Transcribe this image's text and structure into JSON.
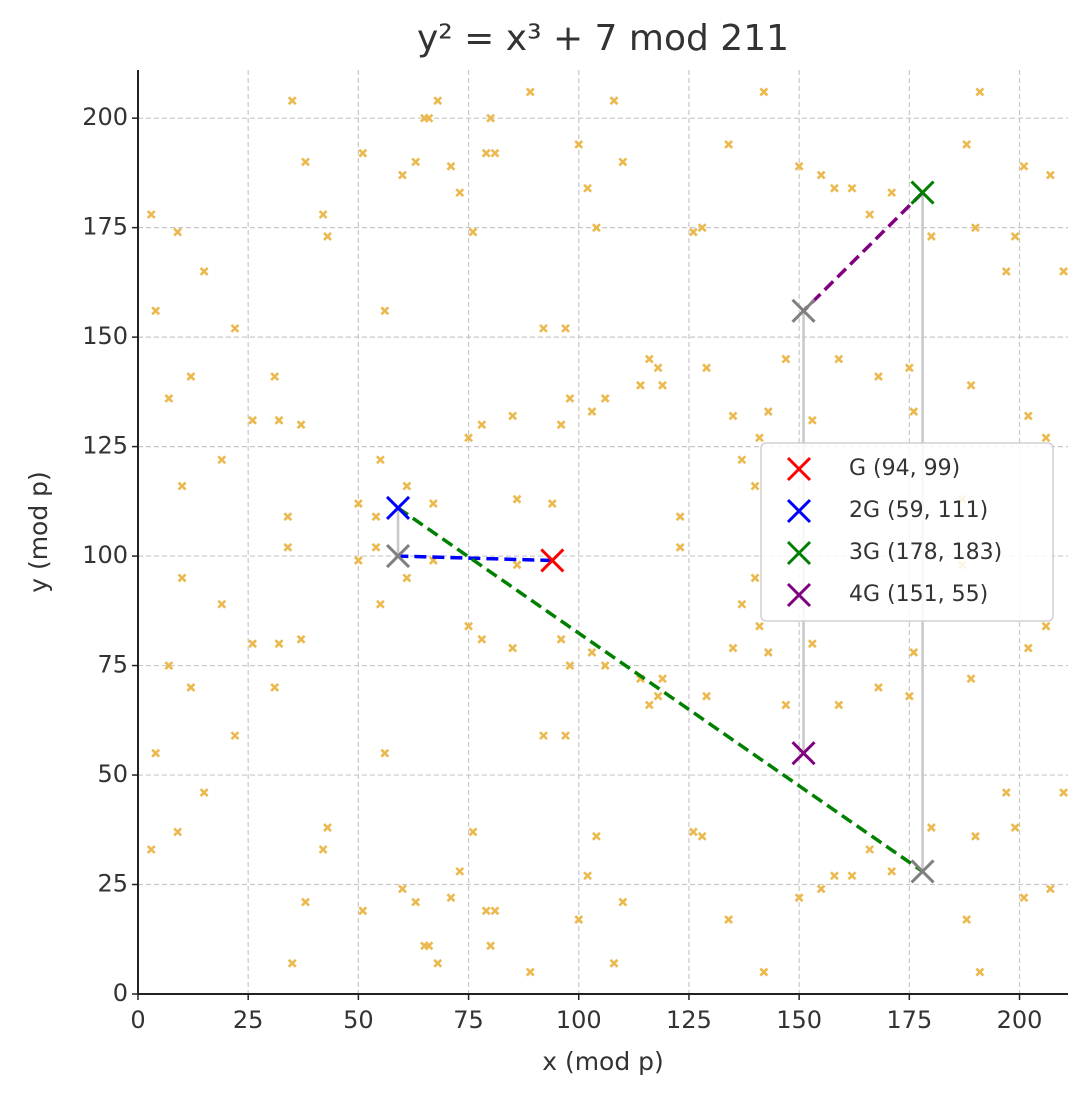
{
  "chart_data": {
    "type": "scatter",
    "title": "y² = x³ + 7 mod 211",
    "x_label": "x (mod p)",
    "y_label": "y (mod p)",
    "xlim": [
      0,
      211
    ],
    "ylim": [
      0,
      211
    ],
    "xticks": [
      0,
      25,
      50,
      75,
      100,
      125,
      150,
      175,
      200
    ],
    "yticks": [
      0,
      25,
      50,
      75,
      100,
      125,
      150,
      175,
      200
    ],
    "grid": true,
    "legend": "center right",
    "series": [
      {
        "color": "#ebb94e",
        "marker": "small",
        "x": [
          3,
          3,
          4,
          4,
          7,
          7,
          9,
          9,
          10,
          10,
          12,
          12,
          15,
          15,
          19,
          19,
          22,
          22,
          26,
          26,
          31,
          31,
          32,
          32,
          34,
          34,
          35,
          35,
          37,
          37,
          38,
          38,
          42,
          42,
          43,
          43,
          50,
          50,
          51,
          51,
          54,
          54,
          55,
          55,
          56,
          56,
          59,
          59,
          60,
          60,
          61,
          61,
          63,
          63,
          65,
          65,
          66,
          66,
          67,
          67,
          68,
          68,
          71,
          71,
          73,
          73,
          75,
          75,
          76,
          76,
          78,
          78,
          79,
          79,
          80,
          80,
          81,
          81,
          85,
          85,
          86,
          86,
          89,
          89,
          92,
          92,
          94,
          94,
          96,
          96,
          97,
          97,
          98,
          98,
          100,
          100,
          102,
          102,
          103,
          103,
          104,
          104,
          106,
          106,
          108,
          108,
          110,
          110,
          114,
          114,
          116,
          116,
          118,
          118,
          119,
          119,
          123,
          123,
          126,
          126,
          128,
          128,
          129,
          129,
          134,
          134,
          135,
          135,
          137,
          137,
          140,
          140,
          141,
          141,
          142,
          142,
          143,
          143,
          147,
          147,
          150,
          150,
          151,
          151,
          153,
          153,
          155,
          155,
          158,
          158,
          159,
          159,
          162,
          162,
          166,
          166,
          168,
          168,
          171,
          171,
          175,
          175,
          176,
          176,
          178,
          178,
          180,
          180,
          187,
          187,
          188,
          188,
          189,
          189,
          190,
          190,
          191,
          191,
          197,
          197,
          199,
          199,
          201,
          201,
          202,
          202,
          206,
          206,
          207,
          207,
          210,
          210
        ],
        "values": [
          178,
          33,
          156,
          55,
          136,
          75,
          174,
          37,
          116,
          95,
          141,
          70,
          165,
          46,
          122,
          89,
          152,
          59,
          131,
          80,
          141,
          70,
          131,
          80,
          109,
          102,
          204,
          7,
          130,
          81,
          190,
          21,
          178,
          33,
          173,
          38,
          112,
          99,
          192,
          19,
          109,
          102,
          122,
          89,
          156,
          55,
          111,
          100,
          187,
          24,
          116,
          95,
          190,
          21,
          200,
          11,
          200,
          11,
          112,
          99,
          204,
          7,
          189,
          22,
          183,
          28,
          127,
          84,
          174,
          37,
          130,
          81,
          192,
          19,
          200,
          11,
          192,
          19,
          132,
          79,
          113,
          98,
          206,
          5,
          152,
          59,
          112,
          99,
          130,
          81,
          152,
          59,
          136,
          75,
          194,
          17,
          184,
          27,
          133,
          78,
          175,
          36,
          136,
          75,
          204,
          7,
          190,
          21,
          139,
          72,
          145,
          66,
          143,
          68,
          139,
          72,
          109,
          102,
          174,
          37,
          175,
          36,
          143,
          68,
          194,
          17,
          132,
          79,
          122,
          89,
          116,
          95,
          127,
          84,
          206,
          5,
          133,
          78,
          145,
          66,
          189,
          22,
          156,
          55,
          131,
          80,
          187,
          24,
          184,
          27,
          145,
          66,
          184,
          27,
          178,
          33,
          141,
          70,
          183,
          28,
          143,
          68,
          133,
          78,
          183,
          28,
          173,
          38,
          113,
          98,
          194,
          17,
          139,
          72,
          175,
          36,
          206,
          5,
          165,
          46,
          173,
          38,
          189,
          22,
          132,
          79,
          127,
          84,
          187,
          24,
          165,
          46
        ]
      },
      {
        "color": "#808080",
        "marker": "large",
        "x": [
          59,
          178,
          151
        ],
        "values": [
          100,
          28,
          156
        ]
      },
      {
        "name": "G (94, 99)",
        "color": "#ff0000",
        "marker": "large",
        "x": [
          94
        ],
        "values": [
          99
        ]
      },
      {
        "name": "2G (59, 111)",
        "color": "#0000ff",
        "marker": "large",
        "x": [
          59
        ],
        "values": [
          111
        ]
      },
      {
        "name": "3G (178, 183)",
        "color": "#008000",
        "marker": "large",
        "x": [
          178
        ],
        "values": [
          183
        ]
      },
      {
        "name": "4G (151, 55)",
        "color": "#800080",
        "marker": "large",
        "x": [
          151
        ],
        "values": [
          55
        ]
      }
    ],
    "lines": [
      {
        "color": "#0000ff",
        "style": "dashed",
        "x": [
          94,
          59
        ],
        "values": [
          99,
          100
        ]
      },
      {
        "color": "#c8c8c8",
        "style": "solid",
        "x": [
          59,
          59
        ],
        "values": [
          100,
          111
        ]
      },
      {
        "color": "#008000",
        "style": "dashed",
        "x": [
          59,
          178
        ],
        "values": [
          111,
          28
        ]
      },
      {
        "color": "#c8c8c8",
        "style": "solid",
        "x": [
          178,
          178
        ],
        "values": [
          28,
          183
        ]
      },
      {
        "color": "#800080",
        "style": "dashed",
        "x": [
          178,
          151
        ],
        "values": [
          183,
          156
        ]
      },
      {
        "color": "#c8c8c8",
        "style": "solid",
        "x": [
          151,
          151
        ],
        "values": [
          156,
          55
        ]
      }
    ]
  }
}
